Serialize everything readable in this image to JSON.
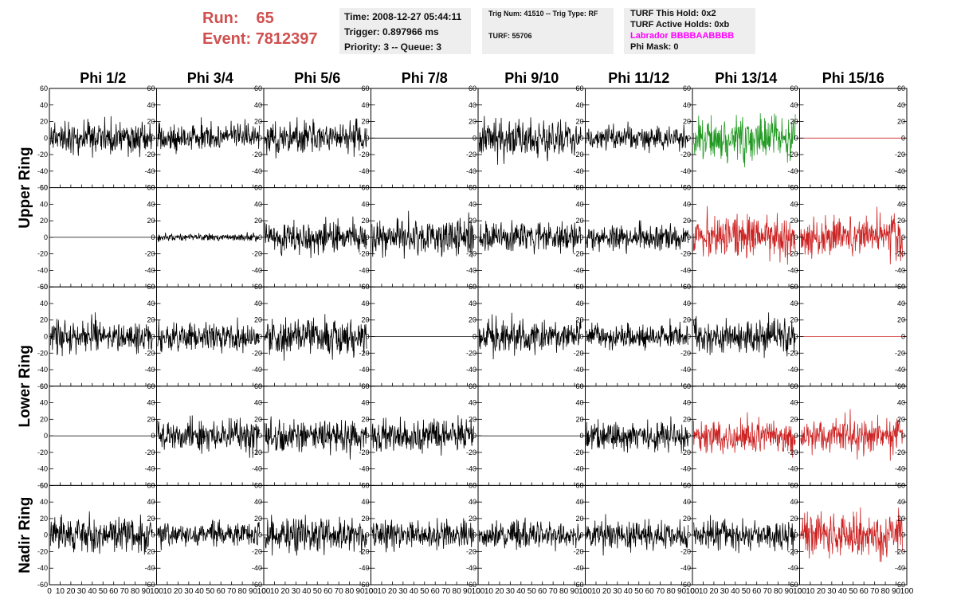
{
  "header": {
    "run_label": "Run:",
    "run_value": "65",
    "event_label": "Event:",
    "event_value": "7812397",
    "time": "Time: 2008-12-27 05:44:11",
    "trigger": "Trigger: 0.897966 ms",
    "priority": "Priority: 3 -- Queue: 3",
    "trig_num": "Trig Num: 41510 -- Trig Type: RF",
    "turf": "TURF: 55706",
    "turf_hold": "TURF This Hold: 0x2",
    "turf_active": "TURF Active Holds: 0xb",
    "labrador": "Labrador BBBBAABBBB",
    "phi_mask": "Phi Mask: 0"
  },
  "colors": {
    "black": "#000000",
    "green": "#229922",
    "red": "#cc2222",
    "accent": "#d05050",
    "magenta": "#ff00ff"
  },
  "chart_data": {
    "type": "line",
    "description_note": "",
    "columns": [
      "Phi 1/2",
      "Phi 3/4",
      "Phi 5/6",
      "Phi 7/8",
      "Phi 9/10",
      "Phi 11/12",
      "Phi 13/14",
      "Phi 15/16"
    ],
    "ring_labels": [
      "Upper Ring",
      "Lower Ring",
      "Nadir Ring"
    ],
    "xlim": [
      0,
      100
    ],
    "ylim": [
      -60,
      60
    ],
    "x_ticks": [
      0,
      10,
      20,
      30,
      40,
      50,
      60,
      70,
      80,
      90,
      100
    ],
    "y_ticks": [
      -60,
      -40,
      -20,
      0,
      20,
      40,
      60
    ],
    "panels": [
      [
        {
          "color": "black",
          "amp": 18,
          "seed": 11
        },
        {
          "color": "black",
          "amp": 16,
          "seed": 12
        },
        {
          "color": "black",
          "amp": 18,
          "seed": 13
        },
        {
          "color": "black",
          "amp": 0,
          "seed": 14
        },
        {
          "color": "black",
          "amp": 20,
          "seed": 15
        },
        {
          "color": "black",
          "amp": 13,
          "seed": 16
        },
        {
          "color": "green",
          "amp": 22,
          "seed": 17
        },
        {
          "color": "red",
          "amp": 0,
          "seed": 18
        }
      ],
      [
        {
          "color": "black",
          "amp": 0,
          "seed": 21
        },
        {
          "color": "black",
          "amp": 4,
          "seed": 22
        },
        {
          "color": "black",
          "amp": 18,
          "seed": 23
        },
        {
          "color": "black",
          "amp": 20,
          "seed": 24
        },
        {
          "color": "black",
          "amp": 15,
          "seed": 25
        },
        {
          "color": "black",
          "amp": 14,
          "seed": 26
        },
        {
          "color": "red",
          "amp": 22,
          "seed": 27
        },
        {
          "color": "red",
          "amp": 22,
          "seed": 28
        }
      ],
      [
        {
          "color": "black",
          "amp": 18,
          "seed": 31
        },
        {
          "color": "black",
          "amp": 15,
          "seed": 32
        },
        {
          "color": "black",
          "amp": 20,
          "seed": 33
        },
        {
          "color": "black",
          "amp": 0,
          "seed": 34
        },
        {
          "color": "black",
          "amp": 18,
          "seed": 35
        },
        {
          "color": "black",
          "amp": 14,
          "seed": 36
        },
        {
          "color": "black",
          "amp": 18,
          "seed": 37
        },
        {
          "color": "red",
          "amp": 0,
          "seed": 38
        }
      ],
      [
        {
          "color": "black",
          "amp": 0,
          "seed": 41
        },
        {
          "color": "black",
          "amp": 18,
          "seed": 42
        },
        {
          "color": "black",
          "amp": 18,
          "seed": 43
        },
        {
          "color": "black",
          "amp": 18,
          "seed": 44
        },
        {
          "color": "black",
          "amp": 0,
          "seed": 45
        },
        {
          "color": "black",
          "amp": 16,
          "seed": 46
        },
        {
          "color": "red",
          "amp": 18,
          "seed": 47
        },
        {
          "color": "red",
          "amp": 20,
          "seed": 48
        }
      ],
      [
        {
          "color": "black",
          "amp": 18,
          "seed": 51
        },
        {
          "color": "black",
          "amp": 14,
          "seed": 52
        },
        {
          "color": "black",
          "amp": 20,
          "seed": 53
        },
        {
          "color": "black",
          "amp": 16,
          "seed": 54
        },
        {
          "color": "black",
          "amp": 15,
          "seed": 55
        },
        {
          "color": "black",
          "amp": 16,
          "seed": 56
        },
        {
          "color": "black",
          "amp": 16,
          "seed": 57
        },
        {
          "color": "red",
          "amp": 24,
          "seed": 58
        }
      ]
    ]
  }
}
